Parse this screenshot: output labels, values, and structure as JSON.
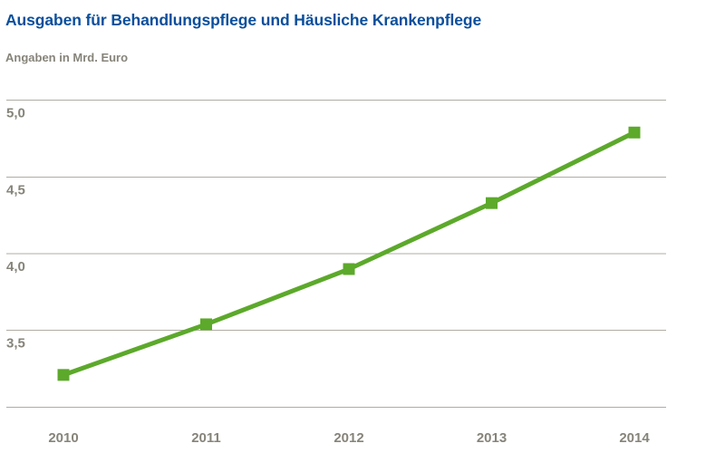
{
  "header": {
    "title": "Ausgaben für Behandlungspflege und Häusliche Krankenpflege",
    "subtitle": "Angaben in Mrd. Euro"
  },
  "colors": {
    "title_blue": "#0b4f9c",
    "label_gray": "#86847a",
    "gridline_gray": "#b0aca4",
    "series_green": "#5ca92b",
    "background": "#ffffff"
  },
  "chart_data": {
    "type": "line",
    "title": "Ausgaben für Behandlungspflege und Häusliche Krankenpflege",
    "unit_label": "Angaben in Mrd. Euro",
    "categories": [
      "2010",
      "2011",
      "2012",
      "2013",
      "2014"
    ],
    "series": [
      {
        "name": "Ausgaben in Mrd. Euro",
        "values": [
          3.21,
          3.54,
          3.9,
          4.33,
          4.79
        ]
      }
    ],
    "ylim": [
      3.0,
      5.0
    ],
    "yticks": [
      {
        "value": 3.5,
        "label": "3,5"
      },
      {
        "value": 4.0,
        "label": "4,0"
      },
      {
        "value": 4.5,
        "label": "4,5"
      },
      {
        "value": 5.0,
        "label": "5,0"
      }
    ],
    "baseline_value": 3.0,
    "baseline_label": "",
    "xlabel": "",
    "ylabel": "",
    "grid": "horizontal",
    "legend": "none",
    "marker": "square"
  }
}
